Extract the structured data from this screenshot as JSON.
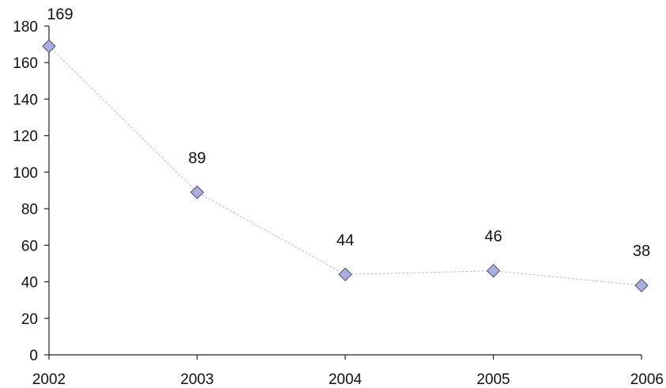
{
  "chart_data": {
    "type": "line",
    "categories": [
      "2002",
      "2003",
      "2004",
      "2005",
      "2006"
    ],
    "series": [
      {
        "values": [
          169,
          89,
          44,
          46,
          38
        ]
      }
    ],
    "data_labels": [
      "169",
      "89",
      "44",
      "46",
      "38"
    ],
    "title": "",
    "xlabel": "",
    "ylabel": "",
    "ylim": [
      0,
      180
    ],
    "yticks": [
      0,
      20,
      40,
      60,
      80,
      100,
      120,
      140,
      160,
      180
    ],
    "grid": false,
    "legend": "none",
    "colors": {
      "marker": "#a9aee0",
      "marker_stroke": "#4a4a6a",
      "line": "#b8bde0"
    }
  }
}
